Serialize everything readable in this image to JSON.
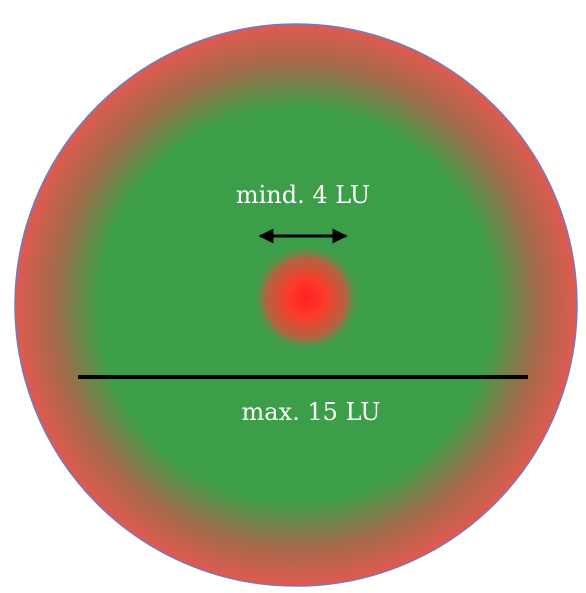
{
  "labels": {
    "inner_distance": "mind. 4 LU",
    "outer_diameter": "max. 15 LU"
  },
  "colors": {
    "outer_ring": "#e05a50",
    "green_zone": "#3d9e49",
    "hotspot_core": "#ff2020",
    "border": "#7a78b8",
    "line": "#000000",
    "text": "#ffffff"
  }
}
